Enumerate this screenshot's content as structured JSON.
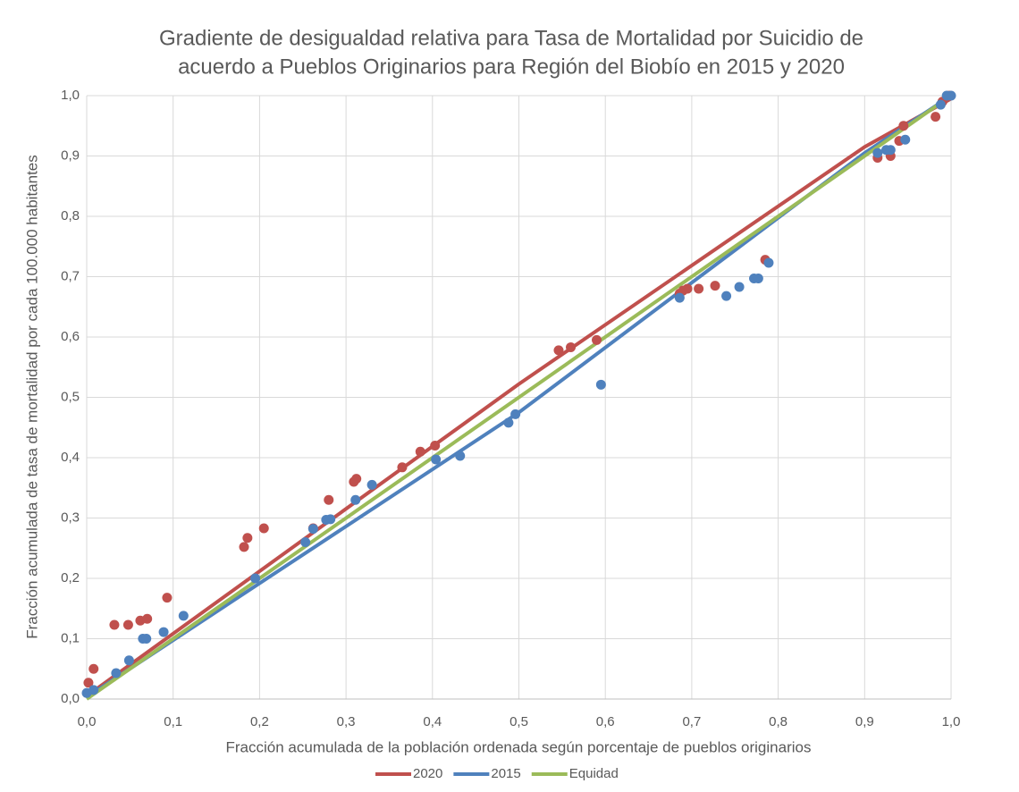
{
  "chart_data": {
    "type": "scatter",
    "title": [
      "Gradiente de desigualdad relativa para Tasa de Mortalidad por Suicidio de",
      "acuerdo a Pueblos Originarios para Región del Biobío en 2015 y 2020"
    ],
    "x_label": "Fracción acumulada de la población ordenada según porcentaje de pueblos originarios",
    "y_label": "Fracción acumulada de tasa de mortalidad por cada 100.000 habitantes",
    "xlim": [
      0,
      1
    ],
    "ylim": [
      0,
      1
    ],
    "xticks": [
      {
        "value": 0,
        "label": "0,0"
      },
      {
        "value": 0.1,
        "label": "0,1"
      },
      {
        "value": 0.2,
        "label": "0,2"
      },
      {
        "value": 0.3,
        "label": "0,3"
      },
      {
        "value": 0.4,
        "label": "0,4"
      },
      {
        "value": 0.5,
        "label": "0,5"
      },
      {
        "value": 0.6,
        "label": "0,6"
      },
      {
        "value": 0.7,
        "label": "0,7"
      },
      {
        "value": 0.8,
        "label": "0,8"
      },
      {
        "value": 0.9,
        "label": "0,9"
      },
      {
        "value": 1,
        "label": "1,0"
      }
    ],
    "yticks": [
      {
        "value": 0,
        "label": "0,0"
      },
      {
        "value": 0.1,
        "label": "0,1"
      },
      {
        "value": 0.2,
        "label": "0,2"
      },
      {
        "value": 0.3,
        "label": "0,3"
      },
      {
        "value": 0.4,
        "label": "0,4"
      },
      {
        "value": 0.5,
        "label": "0,5"
      },
      {
        "value": 0.6,
        "label": "0,6"
      },
      {
        "value": 0.7,
        "label": "0,7"
      },
      {
        "value": 0.8,
        "label": "0,8"
      },
      {
        "value": 0.9,
        "label": "0,9"
      },
      {
        "value": 1,
        "label": "1,0"
      }
    ],
    "grid": true,
    "legend": "bottom",
    "series": [
      {
        "name": "2020",
        "color": "#c0504d",
        "x": [
          0.002,
          0.008,
          0.032,
          0.048,
          0.062,
          0.07,
          0.093,
          0.182,
          0.186,
          0.205,
          0.262,
          0.28,
          0.309,
          0.312,
          0.365,
          0.386,
          0.403,
          0.546,
          0.56,
          0.59,
          0.686,
          0.69,
          0.695,
          0.708,
          0.727,
          0.785,
          0.915,
          0.93,
          0.94,
          0.945,
          0.982,
          0.99,
          0.998
        ],
        "values": [
          0.027,
          0.05,
          0.123,
          0.123,
          0.13,
          0.133,
          0.168,
          0.252,
          0.267,
          0.283,
          0.283,
          0.33,
          0.36,
          0.365,
          0.384,
          0.41,
          0.42,
          0.578,
          0.583,
          0.595,
          0.672,
          0.677,
          0.68,
          0.68,
          0.685,
          0.728,
          0.897,
          0.9,
          0.925,
          0.95,
          0.965,
          0.99,
          1.0
        ],
        "trendline": {
          "x": [
            0,
            0.5,
            0.9,
            1
          ],
          "values": [
            0.005,
            0.522,
            0.915,
            0.995
          ]
        }
      },
      {
        "name": "2015",
        "color": "#4f81bd",
        "x": [
          0.0,
          0.008,
          0.034,
          0.049,
          0.065,
          0.069,
          0.089,
          0.112,
          0.195,
          0.253,
          0.262,
          0.277,
          0.282,
          0.311,
          0.33,
          0.404,
          0.432,
          0.488,
          0.496,
          0.595,
          0.686,
          0.74,
          0.755,
          0.772,
          0.777,
          0.789,
          0.915,
          0.925,
          0.93,
          0.947,
          0.988,
          0.995,
          1.0
        ],
        "values": [
          0.01,
          0.015,
          0.043,
          0.064,
          0.1,
          0.1,
          0.111,
          0.138,
          0.2,
          0.26,
          0.282,
          0.297,
          0.298,
          0.33,
          0.355,
          0.397,
          0.403,
          0.458,
          0.472,
          0.521,
          0.665,
          0.668,
          0.683,
          0.697,
          0.697,
          0.723,
          0.905,
          0.91,
          0.91,
          0.927,
          0.985,
          1.0,
          1.0
        ],
        "trendline": {
          "x": [
            0,
            0.5,
            0.9,
            1
          ],
          "values": [
            0.003,
            0.475,
            0.905,
            1.0
          ]
        }
      },
      {
        "name": "Equidad",
        "color": "#9bbb59",
        "trendline": {
          "x": [
            0,
            1
          ],
          "values": [
            0,
            1
          ]
        }
      }
    ]
  }
}
